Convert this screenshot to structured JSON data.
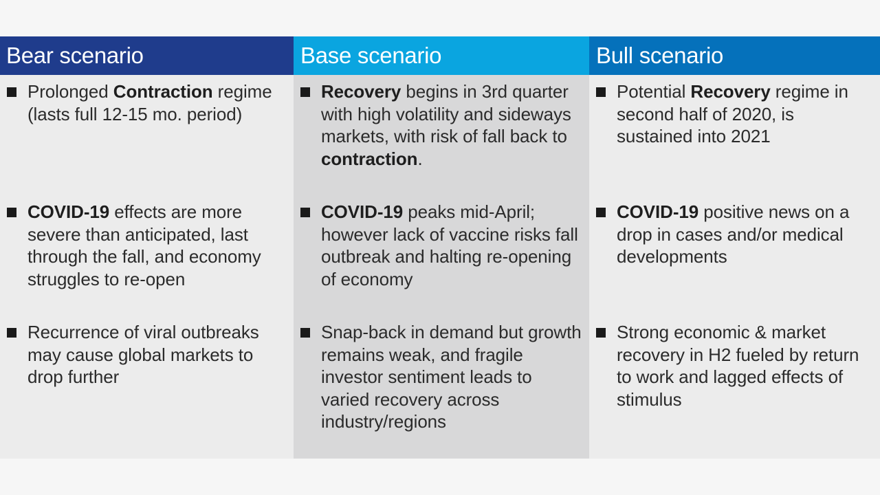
{
  "colors": {
    "bear_header": "#1f3c8c",
    "base_header": "#0aa5e0",
    "bull_header": "#0571bb",
    "panel_light": "#ececec",
    "panel_mid": "#d8d8d9"
  },
  "columns": [
    {
      "title": "Bear scenario",
      "bullets": [
        {
          "pre": "Prolonged ",
          "bold": "Contraction",
          "post": " regime (lasts full 12-15 mo. period)"
        },
        {
          "pre": "",
          "bold": "COVID-19",
          "post": " effects are more severe than anticipated, last through the fall, and economy struggles to re-open"
        },
        {
          "pre": "Recurrence of viral outbreaks may cause global markets to drop further",
          "bold": "",
          "post": ""
        }
      ]
    },
    {
      "title": "Base scenario",
      "bullets": [
        {
          "pre": "",
          "bold": "Recovery",
          "post": " begins in 3rd quarter with high volatility and sideways markets, with risk of fall back to ",
          "bold2": "contraction",
          "post2": "."
        },
        {
          "pre": "",
          "bold": "COVID-19",
          "post": " peaks mid-April; however lack of vaccine risks fall outbreak and halting re-opening of economy"
        },
        {
          "pre": "Snap-back in demand but growth remains weak, and fragile investor sentiment leads to varied recovery across industry/regions",
          "bold": "",
          "post": ""
        }
      ]
    },
    {
      "title": "Bull scenario",
      "bullets": [
        {
          "pre": "Potential ",
          "bold": "Recovery",
          "post": " regime in second half of 2020, is sustained into 2021"
        },
        {
          "pre": "",
          "bold": "COVID-19",
          "post": " positive news on a drop in cases and/or medical developments"
        },
        {
          "pre": "Strong economic & market recovery in H2 fueled by return to work and lagged effects of stimulus",
          "bold": "",
          "post": ""
        }
      ]
    }
  ]
}
